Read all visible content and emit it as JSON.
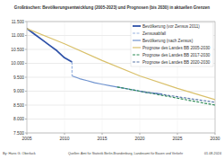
{
  "chart_data": {
    "type": "line",
    "title": "Großräschen: Bevölkerungsentwicklung (2005-2023) und Prognosen (bis 2030) in aktuellen Grenzen",
    "annotations": [
      "By: Hans G. Oberlack",
      "Quellen: Amt für Statistik Berlin-Brandenburg, Landesamt für Bauen und Verkehr",
      "01.08.2024"
    ],
    "xlim": [
      2005,
      2030
    ],
    "xticks": [
      2005,
      2010,
      2015,
      2020,
      2025,
      2030
    ],
    "ylim": [
      7500,
      11500
    ],
    "yticks": [
      {
        "value": 7500,
        "label": "7.500"
      },
      {
        "value": 8000,
        "label": "8.000"
      },
      {
        "value": 8500,
        "label": "8.500"
      },
      {
        "value": 9000,
        "label": "9.000"
      },
      {
        "value": 9500,
        "label": "9.500"
      },
      {
        "value": 10000,
        "label": "10.000"
      },
      {
        "value": 10500,
        "label": "10.500"
      },
      {
        "value": 11000,
        "label": "11.000"
      },
      {
        "value": 11500,
        "label": "11.500"
      }
    ],
    "grid": true,
    "legend": "upper right",
    "series": [
      {
        "name": "Bevölkerung (vor Zensus 2011)",
        "color": "#2f52a8",
        "line_style": "solid",
        "x": [
          2005,
          2006,
          2007,
          2008,
          2009,
          2010,
          2011
        ],
        "values": [
          11250,
          11050,
          10850,
          10650,
          10450,
          10200,
          10050
        ]
      },
      {
        "name": "Zensusabfall",
        "color": "#9ab4e0",
        "line_style": "dashed",
        "x": [
          2011,
          2011
        ],
        "values": [
          10050,
          9550
        ]
      },
      {
        "name": "Bevölkerung (nach Zensus)",
        "color": "#6f93cf",
        "line_style": "solid",
        "x": [
          2011,
          2012,
          2013,
          2014,
          2015,
          2016,
          2017,
          2018,
          2019,
          2020,
          2021,
          2022,
          2023
        ],
        "values": [
          9550,
          9450,
          9380,
          9300,
          9250,
          9200,
          9150,
          9100,
          9050,
          9000,
          8950,
          8930,
          8900
        ]
      },
      {
        "name": "Prognose des Landes BB 2005-2030",
        "color": "#d9c06a",
        "line_style": "solid",
        "x": [
          2005,
          2010,
          2015,
          2020,
          2025,
          2030
        ],
        "values": [
          11250,
          10700,
          10100,
          9550,
          9100,
          8700
        ]
      },
      {
        "name": "Prognose des Landes BB 2017-2030",
        "color": "#2e8b57",
        "line_style": "dashed",
        "x": [
          2017,
          2020,
          2025,
          2030
        ],
        "values": [
          9150,
          9000,
          8750,
          8500
        ]
      },
      {
        "name": "Prognose des Landes BB 2020-2030",
        "color": "#5a78a8",
        "line_style": "dashed",
        "x": [
          2020,
          2025,
          2030
        ],
        "values": [
          9000,
          8800,
          8600
        ]
      }
    ]
  }
}
